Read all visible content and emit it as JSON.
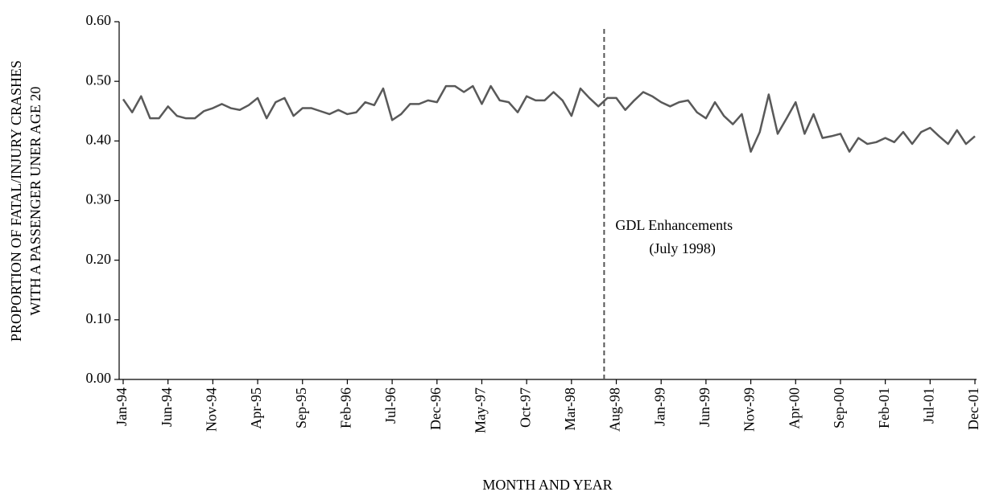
{
  "chart_data": {
    "type": "line",
    "y_title": [
      "PROPORTION OF FATAL/INJURY CRASHES",
      "WITH A PASSENGER UNER AGE 20"
    ],
    "x_title": "MONTH AND YEAR",
    "color": "#595959",
    "ylim": [
      0,
      0.6
    ],
    "yticks": [
      {
        "value": 0,
        "label": "0.00"
      },
      {
        "value": 0.1,
        "label": "0.10"
      },
      {
        "value": 0.2,
        "label": "0.20"
      },
      {
        "value": 0.3,
        "label": "0.30"
      },
      {
        "value": 0.4,
        "label": "0.40"
      },
      {
        "value": 0.5,
        "label": "0.50"
      },
      {
        "value": 0.6,
        "label": "0.60"
      }
    ],
    "categories": [
      "Jan-94",
      null,
      null,
      null,
      null,
      "Jun-94",
      null,
      null,
      null,
      null,
      "Nov-94",
      null,
      null,
      null,
      null,
      "Apr-95",
      null,
      null,
      null,
      null,
      "Sep-95",
      null,
      null,
      null,
      null,
      "Feb-96",
      null,
      null,
      null,
      null,
      "Jul-96",
      null,
      null,
      null,
      null,
      "Dec-96",
      null,
      null,
      null,
      null,
      "May-97",
      null,
      null,
      null,
      null,
      "Oct-97",
      null,
      null,
      null,
      null,
      "Mar-98",
      null,
      null,
      null,
      null,
      "Aug-98",
      null,
      null,
      null,
      null,
      "Jan-99",
      null,
      null,
      null,
      null,
      "Jun-99",
      null,
      null,
      null,
      null,
      "Nov-99",
      null,
      null,
      null,
      null,
      "Apr-00",
      null,
      null,
      null,
      null,
      "Sep-00",
      null,
      null,
      null,
      null,
      "Feb-01",
      null,
      null,
      null,
      null,
      "Jul-01",
      null,
      null,
      null,
      null,
      "Dec-01"
    ],
    "values": [
      0.47,
      0.448,
      0.475,
      0.438,
      0.438,
      0.458,
      0.442,
      0.438,
      0.438,
      0.45,
      0.455,
      0.462,
      0.455,
      0.452,
      0.46,
      0.472,
      0.438,
      0.465,
      0.472,
      0.442,
      0.455,
      0.455,
      0.45,
      0.445,
      0.452,
      0.445,
      0.448,
      0.465,
      0.46,
      0.488,
      0.435,
      0.445,
      0.462,
      0.462,
      0.468,
      0.465,
      0.492,
      0.492,
      0.482,
      0.492,
      0.462,
      0.492,
      0.468,
      0.465,
      0.448,
      0.475,
      0.468,
      0.468,
      0.482,
      0.468,
      0.442,
      0.488,
      0.472,
      0.458,
      0.472,
      0.472,
      0.452,
      0.468,
      0.482,
      0.475,
      0.465,
      0.458,
      0.465,
      0.468,
      0.448,
      0.438,
      0.465,
      0.442,
      0.428,
      0.445,
      0.382,
      0.415,
      0.478,
      0.412,
      0.438,
      0.465,
      0.412,
      0.445,
      0.405,
      0.408,
      0.412,
      0.382,
      0.405,
      0.395,
      0.398,
      0.405,
      0.398,
      0.415,
      0.395,
      0.415,
      0.422,
      0.408,
      0.395,
      0.418,
      0.395,
      0.408
    ],
    "vline": {
      "x": 54,
      "label": [
        "GDL Enhancements",
        "(July 1998)"
      ]
    }
  }
}
